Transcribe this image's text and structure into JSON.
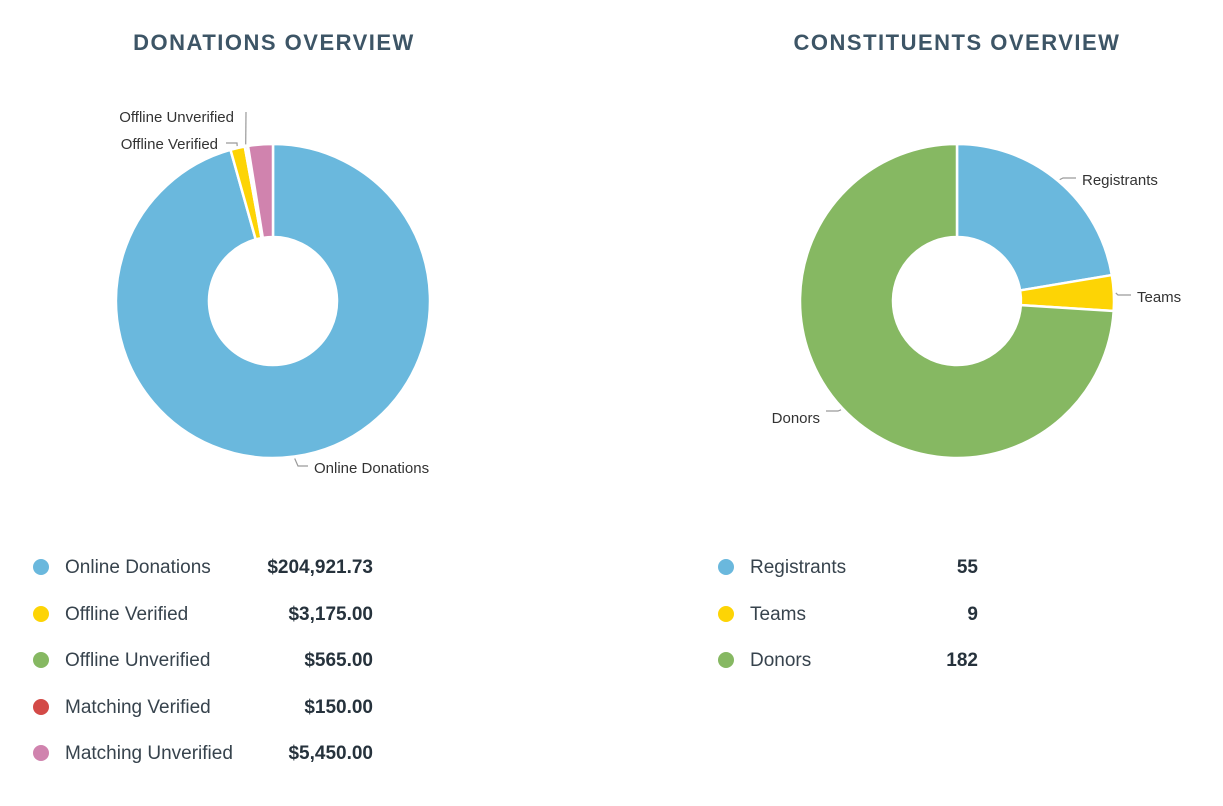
{
  "chart_data": [
    {
      "type": "pie",
      "donut": true,
      "title": "DONATIONS OVERVIEW",
      "categories": [
        "Online Donations",
        "Offline Verified",
        "Offline Unverified",
        "Matching Verified",
        "Matching Unverified"
      ],
      "values": [
        204921.73,
        3175.0,
        565.0,
        150.0,
        5450.0
      ],
      "value_labels": [
        "$204,921.73",
        "$3,175.00",
        "$565.00",
        "$150.00",
        "$5,450.00"
      ],
      "colors": [
        "#6ab8dd",
        "#fdd405",
        "#86b862",
        "#d34a47",
        "#d083ae"
      ],
      "slice_labels": [
        "Online Donations",
        "Offline Verified",
        "Offline Unverified",
        "",
        ""
      ],
      "legend_position": "bottom"
    },
    {
      "type": "pie",
      "donut": true,
      "title": "CONSTITUENTS OVERVIEW",
      "categories": [
        "Registrants",
        "Teams",
        "Donors"
      ],
      "values": [
        55,
        9,
        182
      ],
      "value_labels": [
        "55",
        "9",
        "182"
      ],
      "colors": [
        "#6ab8dd",
        "#fdd405",
        "#86b862"
      ],
      "slice_labels": [
        "Registrants",
        "Teams",
        "Donors"
      ],
      "legend_position": "bottom"
    }
  ]
}
